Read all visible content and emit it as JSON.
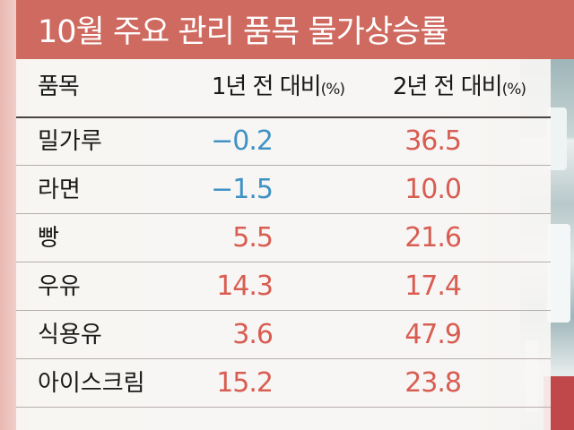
{
  "header": {
    "title": "10월 주요 관리 품목 물가상승률"
  },
  "table": {
    "columns": {
      "item": "품목",
      "yoy_1yr": "1년 전 대비",
      "yoy_2yr": "2년 전 대비",
      "unit": "(%)"
    },
    "rows": [
      {
        "item": "밀가루",
        "yr1": "−0.2",
        "yr2": "36.5"
      },
      {
        "item": "라면",
        "yr1": "−1.5",
        "yr2": "10.0"
      },
      {
        "item": "빵",
        "yr1": "5.5",
        "yr2": "21.6"
      },
      {
        "item": "우유",
        "yr1": "14.3",
        "yr2": "17.4"
      },
      {
        "item": "식용유",
        "yr1": "3.6",
        "yr2": "47.9"
      },
      {
        "item": "아이스크림",
        "yr1": "15.2",
        "yr2": "23.8"
      }
    ]
  },
  "colors": {
    "header_bg": "#cf6a60",
    "negative": "#3f93c4",
    "positive": "#d85d52"
  }
}
